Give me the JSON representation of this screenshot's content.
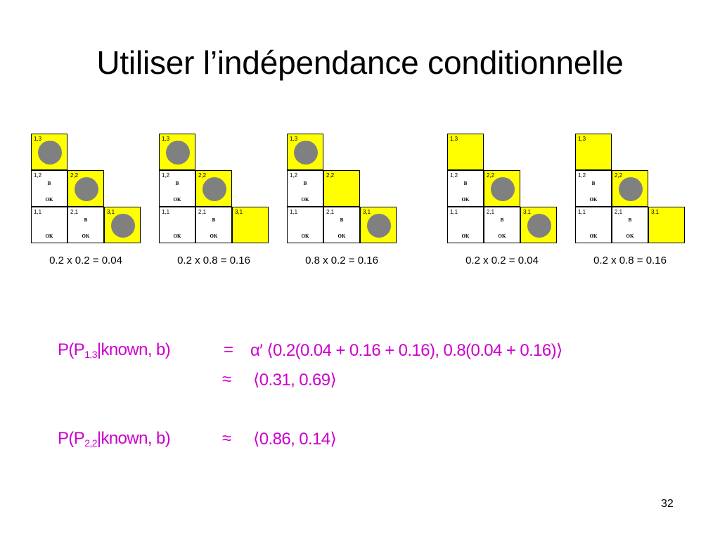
{
  "title": "Utiliser l’indépendance conditionnelle",
  "cell_labels": {
    "c13": "1,3",
    "c12": "1,2",
    "c22": "2,2",
    "c11": "1,1",
    "c21": "2,1",
    "c31": "3,1"
  },
  "marks": {
    "breeze": "B",
    "ok": "OK"
  },
  "colors": {
    "frontier": "#ffff00",
    "pit": "#808080",
    "math": "#cc00cc"
  },
  "grids": [
    {
      "caption": "0.2 x 0.2 = 0.04",
      "pits": [
        "1,3",
        "2,2",
        "3,1"
      ]
    },
    {
      "caption": "0.2 x 0.8 = 0.16",
      "pits": [
        "1,3",
        "2,2"
      ]
    },
    {
      "caption": "0.8 x 0.2 = 0.16",
      "pits": [
        "1,3",
        "3,1"
      ]
    },
    {
      "caption": "0.2 x 0.2 = 0.04",
      "pits": [
        "2,2",
        "3,1"
      ]
    },
    {
      "caption": "0.2 x 0.8 = 0.16",
      "pits": [
        "2,2"
      ]
    }
  ],
  "equations": {
    "eq1_lhs_a": "P(P",
    "eq1_lhs_sub": "1,3",
    "eq1_lhs_b": "|known, b)",
    "eq1_rel": "=",
    "eq1_rhs": "α′ ⟨0.2(0.04 + 0.16 + 0.16),  0.8(0.04 + 0.16)⟩",
    "eq2_rel": "≈",
    "eq2_rhs": "⟨0.31, 0.69⟩",
    "eq3_lhs_a": "P(P",
    "eq3_lhs_sub": "2,2",
    "eq3_lhs_b": "|known, b)",
    "eq3_rel": "≈",
    "eq3_rhs": "⟨0.86, 0.14⟩"
  },
  "page_number": "32"
}
